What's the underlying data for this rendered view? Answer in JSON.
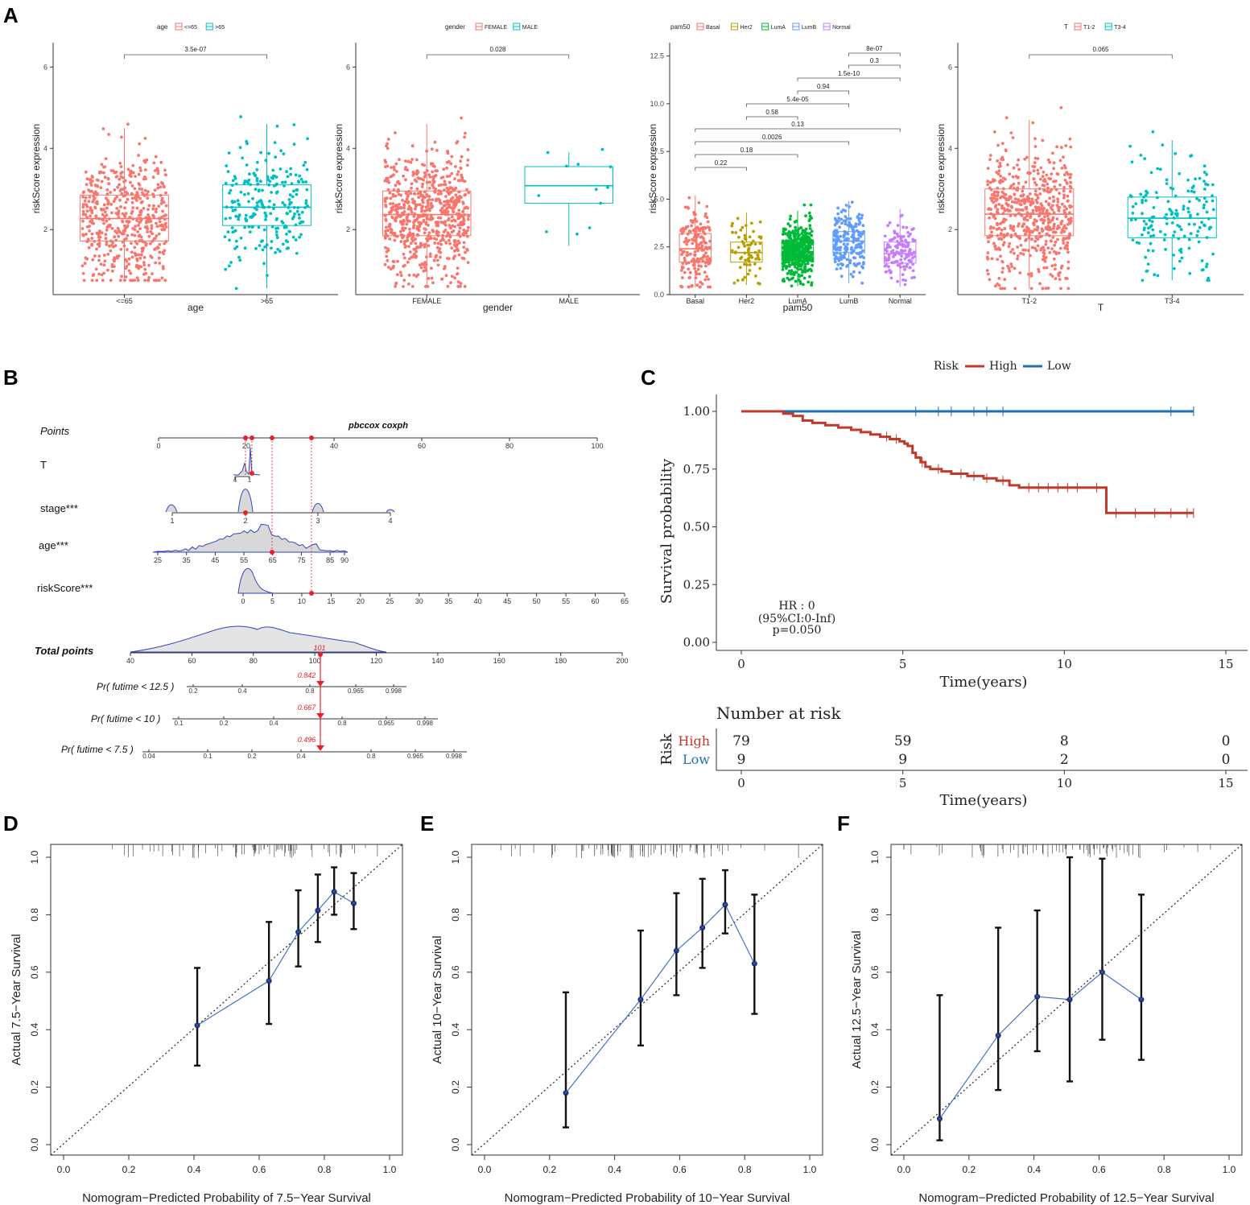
{
  "panel_letters": [
    "A",
    "B",
    "C",
    "D",
    "E",
    "F"
  ],
  "colors": {
    "red": "#F8766D",
    "cyan": "#00BFC4",
    "olive": "#B79F00",
    "green": "#00BA38",
    "blue": "#619CFF",
    "magenta": "#C77CFF",
    "high": "#C0392B",
    "low": "#1F6FB5",
    "cal_line": "#4472C4",
    "nomo_red": "#E8202A",
    "nomo_blue": "#4455CC"
  },
  "chart_data": [
    {
      "id": "A1",
      "type": "box",
      "legend_title": "age",
      "legend_items": [
        "<=65",
        ">65"
      ],
      "xlabel": "age",
      "ylabel": "riskScore expression",
      "ylim": [
        0.4,
        6.6
      ],
      "yticks": [
        2,
        4,
        6
      ],
      "categories": [
        "<=65",
        ">65"
      ],
      "boxes": [
        {
          "q1": 1.72,
          "median": 2.27,
          "q3": 2.85,
          "wlo": 0.75,
          "whi": 4.5,
          "n": 520
        },
        {
          "q1": 2.1,
          "median": 2.55,
          "q3": 3.1,
          "wlo": 0.55,
          "whi": 4.6,
          "n": 240
        }
      ],
      "comparisons": [
        {
          "from": 0,
          "to": 1,
          "label": "3.5e-07"
        }
      ]
    },
    {
      "id": "A2",
      "type": "box",
      "legend_title": "gender",
      "legend_items": [
        "FEMALE",
        "MALE"
      ],
      "xlabel": "gender",
      "ylabel": "riskScore expression",
      "ylim": [
        0.4,
        6.6
      ],
      "yticks": [
        2,
        4,
        6
      ],
      "categories": [
        "FEMALE",
        "MALE"
      ],
      "boxes": [
        {
          "q1": 1.85,
          "median": 2.37,
          "q3": 2.95,
          "wlo": 0.6,
          "whi": 4.6,
          "n": 700
        },
        {
          "q1": 2.65,
          "median": 3.08,
          "q3": 3.55,
          "wlo": 1.6,
          "whi": 3.9,
          "n": 12
        }
      ],
      "comparisons": [
        {
          "from": 0,
          "to": 1,
          "label": "0.028"
        }
      ]
    },
    {
      "id": "A3",
      "type": "box",
      "legend_title": "pam50",
      "legend_items": [
        "Basal",
        "Her2",
        "LumA",
        "LumB",
        "Normal"
      ],
      "xlabel": "pam50",
      "ylabel": "riskScore expression",
      "ylim": [
        0,
        13.2
      ],
      "yticks": [
        0.0,
        2.5,
        5.0,
        7.5,
        10.0,
        12.5
      ],
      "ytick_labels": [
        "0.0",
        "2.5",
        "5.0",
        "7.5",
        "10.0",
        "12.5"
      ],
      "categories": [
        "Basal",
        "Her2",
        "LumA",
        "LumB",
        "Normal"
      ],
      "boxes": [
        {
          "q1": 1.7,
          "median": 2.4,
          "q3": 3.2,
          "wlo": 0.4,
          "whi": 5.2,
          "n": 180
        },
        {
          "q1": 1.7,
          "median": 2.2,
          "q3": 2.75,
          "wlo": 0.5,
          "whi": 4.3,
          "n": 70
        },
        {
          "q1": 1.8,
          "median": 2.25,
          "q3": 2.75,
          "wlo": 0.45,
          "whi": 4.4,
          "n": 480
        },
        {
          "q1": 2.2,
          "median": 2.8,
          "q3": 3.3,
          "wlo": 0.6,
          "whi": 4.9,
          "n": 200
        },
        {
          "q1": 1.65,
          "median": 2.15,
          "q3": 2.75,
          "wlo": 0.4,
          "whi": 4.5,
          "n": 130
        }
      ],
      "comparisons": [
        {
          "from": 0,
          "to": 1,
          "label": "0.22",
          "y": 3.2
        },
        {
          "from": 0,
          "to": 2,
          "label": "0.18",
          "y": 3.6
        },
        {
          "from": 0,
          "to": 3,
          "label": "0.0026",
          "y": 4.0
        },
        {
          "from": 0,
          "to": 4,
          "label": "0.13",
          "y": 4.4
        },
        {
          "from": 1,
          "to": 2,
          "label": "0.58",
          "y": 4.8
        },
        {
          "from": 1,
          "to": 3,
          "label": "5.4e-05",
          "y": 5.2
        },
        {
          "from": 2,
          "to": 3,
          "label": "0.94",
          "y": 5.6
        },
        {
          "from": 2,
          "to": 4,
          "label": "1.5e-10",
          "y": 6.0
        },
        {
          "from": 3,
          "to": 4,
          "label": "0.3",
          "y": 6.4
        },
        {
          "from": 3,
          "to": 4,
          "label": "8e-07",
          "y": 6.8
        }
      ]
    },
    {
      "id": "A4",
      "type": "box",
      "legend_title": "T",
      "legend_items": [
        "T1-2",
        "T3-4"
      ],
      "xlabel": "T",
      "ylabel": "riskScore expression",
      "ylim": [
        0.4,
        6.6
      ],
      "yticks": [
        2,
        4,
        6
      ],
      "categories": [
        "T1-2",
        "T3-4"
      ],
      "boxes": [
        {
          "q1": 1.85,
          "median": 2.38,
          "q3": 3.0,
          "wlo": 0.55,
          "whi": 4.7,
          "n": 600
        },
        {
          "q1": 1.8,
          "median": 2.28,
          "q3": 2.8,
          "wlo": 0.75,
          "whi": 4.2,
          "n": 160
        }
      ],
      "comparisons": [
        {
          "from": 0,
          "to": 1,
          "label": "0.065"
        }
      ]
    },
    {
      "id": "B",
      "type": "nomogram",
      "title": "pbccox coxph",
      "rows": [
        {
          "label": "Points",
          "ticks": [
            "0",
            "20",
            "40",
            "60",
            "80",
            "100"
          ]
        },
        {
          "label": "T",
          "ticks": [
            "4",
            "1"
          ]
        },
        {
          "label": "stage***",
          "ticks": [
            "1",
            "2",
            "3",
            "4"
          ]
        },
        {
          "label": "age***",
          "ticks": [
            "25",
            "35",
            "45",
            "55",
            "65",
            "75",
            "85",
            "90"
          ]
        },
        {
          "label": "riskScore***",
          "ticks": [
            "0",
            "5",
            "10",
            "15",
            "20",
            "25",
            "30",
            "35",
            "40",
            "45",
            "50",
            "55",
            "60",
            "65"
          ]
        },
        {
          "label": "Total points",
          "ticks": [
            "40",
            "60",
            "80",
            "100",
            "120",
            "140",
            "160",
            "180",
            "200"
          ]
        },
        {
          "label": "Pr( futime < 12.5 )",
          "ticks": [
            "0.2",
            "0.4",
            "0.8",
            "0.965",
            "0.998"
          ]
        },
        {
          "label": "Pr( futime < 10 )",
          "ticks": [
            "0.1",
            "0.2",
            "0.4",
            "0.8",
            "0.965",
            "0.998"
          ]
        },
        {
          "label": "Pr( futime < 7.5 )",
          "ticks": [
            "0.04",
            "0.1",
            "0.2",
            "0.4",
            "0.8",
            "0.965",
            "0.998"
          ]
        }
      ],
      "total_marker": "101",
      "predictions": [
        "0.842",
        "0.667",
        "0.496"
      ]
    },
    {
      "id": "C",
      "type": "line",
      "legend_title": "Risk",
      "series_names": [
        "High",
        "Low"
      ],
      "xlabel": "Time(years)",
      "ylabel": "Survival probability",
      "xlim": [
        0,
        15
      ],
      "ylim": [
        0,
        1
      ],
      "xticks": [
        "0",
        "5",
        "10",
        "15"
      ],
      "yticks": [
        "0.00",
        "0.25",
        "0.50",
        "0.75",
        "1.00"
      ],
      "high_steps": [
        [
          0,
          1.0
        ],
        [
          1.3,
          0.99
        ],
        [
          1.6,
          0.98
        ],
        [
          1.9,
          0.96
        ],
        [
          2.2,
          0.95
        ],
        [
          2.6,
          0.94
        ],
        [
          3.0,
          0.93
        ],
        [
          3.4,
          0.92
        ],
        [
          3.7,
          0.91
        ],
        [
          4.0,
          0.9
        ],
        [
          4.3,
          0.89
        ],
        [
          4.6,
          0.88
        ],
        [
          4.9,
          0.87
        ],
        [
          5.05,
          0.86
        ],
        [
          5.15,
          0.85
        ],
        [
          5.3,
          0.82
        ],
        [
          5.4,
          0.8
        ],
        [
          5.55,
          0.78
        ],
        [
          5.7,
          0.76
        ],
        [
          5.85,
          0.75
        ],
        [
          6.2,
          0.74
        ],
        [
          6.5,
          0.73
        ],
        [
          7.0,
          0.72
        ],
        [
          7.5,
          0.71
        ],
        [
          7.9,
          0.7
        ],
        [
          8.3,
          0.68
        ],
        [
          8.6,
          0.67
        ],
        [
          11.3,
          0.56
        ],
        [
          14.0,
          0.56
        ]
      ],
      "high_censors": [
        4.5,
        4.8,
        5.6,
        6.1,
        6.8,
        7.2,
        7.6,
        8.1,
        8.9,
        9.2,
        9.5,
        9.8,
        10.1,
        10.4,
        11.0,
        11.6,
        12.2,
        12.8,
        13.3,
        13.8,
        14.0
      ],
      "low_censors": [
        5.4,
        6.1,
        6.5,
        7.2,
        7.6,
        8.1,
        13.3,
        14.0
      ],
      "stats": [
        "HR : 0",
        "(95%CI:0-Inf)",
        "p=0.050"
      ],
      "risk_table": {
        "title": "Number at risk",
        "row_title": "Risk",
        "rows": [
          {
            "name": "High",
            "counts": [
              "79",
              "59",
              "8",
              "0"
            ]
          },
          {
            "name": "Low",
            "counts": [
              "9",
              "9",
              "2",
              "0"
            ]
          }
        ],
        "xlabel": "Time(years)"
      }
    },
    {
      "id": "D",
      "type": "scatter",
      "xlabel": "Nomogram−Predicted Probability of 7.5−Year Survival",
      "ylabel": "Actual 7.5−Year Survival",
      "xticks": [
        "0.0",
        "0.2",
        "0.4",
        "0.6",
        "0.8",
        "1.0"
      ],
      "yticks": [
        "0.0",
        "0.2",
        "0.4",
        "0.6",
        "0.8",
        "1.0"
      ],
      "points": [
        {
          "x": 0.41,
          "y": 0.415,
          "lo": 0.275,
          "hi": 0.615
        },
        {
          "x": 0.63,
          "y": 0.57,
          "lo": 0.42,
          "hi": 0.775
        },
        {
          "x": 0.72,
          "y": 0.74,
          "lo": 0.62,
          "hi": 0.885
        },
        {
          "x": 0.78,
          "y": 0.815,
          "lo": 0.705,
          "hi": 0.94
        },
        {
          "x": 0.83,
          "y": 0.88,
          "lo": 0.8,
          "hi": 0.965
        },
        {
          "x": 0.89,
          "y": 0.84,
          "lo": 0.75,
          "hi": 0.945
        }
      ]
    },
    {
      "id": "E",
      "type": "scatter",
      "xlabel": "Nomogram−Predicted Probability of 10−Year Survival",
      "ylabel": "Actual 10−Year Survival",
      "xticks": [
        "0.0",
        "0.2",
        "0.4",
        "0.6",
        "0.8",
        "1.0"
      ],
      "yticks": [
        "0.0",
        "0.2",
        "0.4",
        "0.6",
        "0.8",
        "1.0"
      ],
      "points": [
        {
          "x": 0.25,
          "y": 0.18,
          "lo": 0.06,
          "hi": 0.53
        },
        {
          "x": 0.48,
          "y": 0.505,
          "lo": 0.345,
          "hi": 0.745
        },
        {
          "x": 0.59,
          "y": 0.675,
          "lo": 0.52,
          "hi": 0.875
        },
        {
          "x": 0.67,
          "y": 0.755,
          "lo": 0.615,
          "hi": 0.925
        },
        {
          "x": 0.74,
          "y": 0.835,
          "lo": 0.735,
          "hi": 0.955
        },
        {
          "x": 0.83,
          "y": 0.63,
          "lo": 0.455,
          "hi": 0.87
        }
      ]
    },
    {
      "id": "F",
      "type": "scatter",
      "xlabel": "Nomogram−Predicted Probability of 12.5−Year Survival",
      "ylabel": "Actual 12.5−Year Survival",
      "xticks": [
        "0.0",
        "0.2",
        "0.4",
        "0.6",
        "0.8",
        "1.0"
      ],
      "yticks": [
        "0.0",
        "0.2",
        "0.4",
        "0.6",
        "0.8",
        "1.0"
      ],
      "points": [
        {
          "x": 0.11,
          "y": 0.09,
          "lo": 0.015,
          "hi": 0.52
        },
        {
          "x": 0.29,
          "y": 0.38,
          "lo": 0.19,
          "hi": 0.755
        },
        {
          "x": 0.41,
          "y": 0.515,
          "lo": 0.325,
          "hi": 0.815
        },
        {
          "x": 0.51,
          "y": 0.505,
          "lo": 0.22,
          "hi": 1.0
        },
        {
          "x": 0.61,
          "y": 0.6,
          "lo": 0.365,
          "hi": 0.995
        },
        {
          "x": 0.73,
          "y": 0.505,
          "lo": 0.295,
          "hi": 0.87
        }
      ]
    }
  ]
}
